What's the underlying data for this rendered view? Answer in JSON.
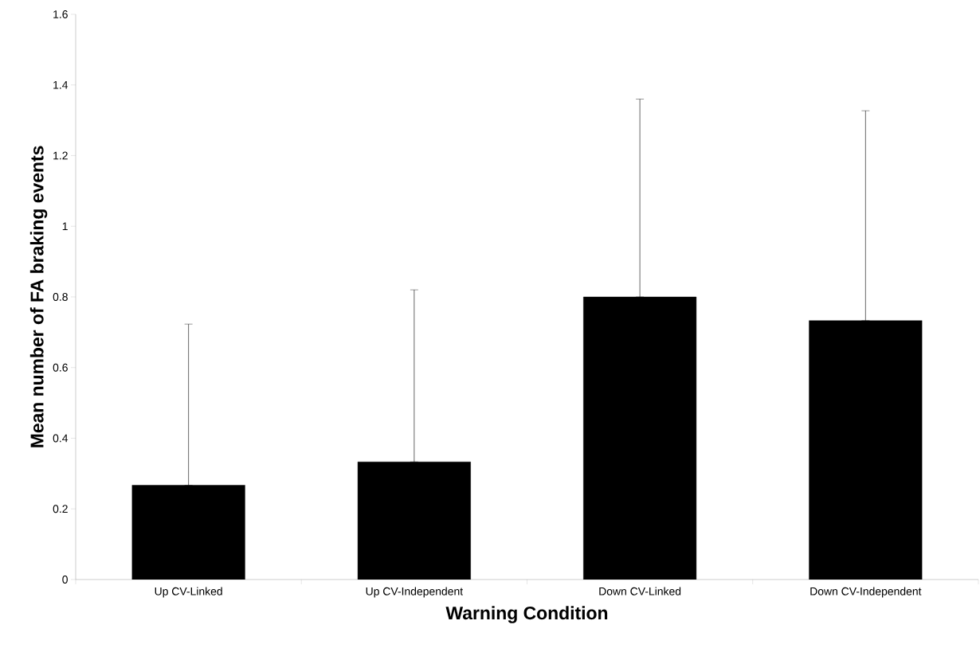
{
  "chart_data": {
    "type": "bar",
    "xlabel": "Warning Condition",
    "ylabel": "Mean number of FA braking events",
    "categories": [
      "Up CV-Linked",
      "Up CV-Independent",
      "Down CV-Linked",
      "Down CV-Independent"
    ],
    "values": [
      0.267,
      0.333,
      0.8,
      0.733
    ],
    "color": "#000000",
    "errors": [
      [
        0.267,
        0.723
      ],
      [
        0.333,
        0.82
      ],
      [
        0.8,
        1.36
      ],
      [
        0.733,
        1.327
      ]
    ],
    "ylim": [
      0,
      1.6
    ],
    "yticks": [
      0,
      0.2,
      0.4,
      0.6,
      0.8,
      1,
      1.2,
      1.4,
      1.6
    ],
    "grid": false
  }
}
